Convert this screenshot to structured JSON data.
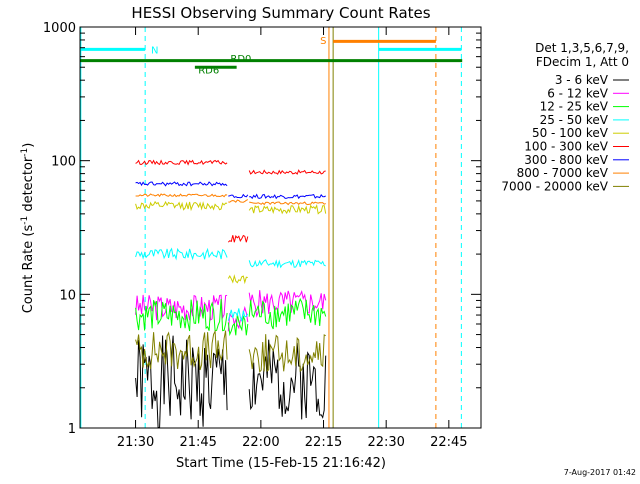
{
  "chart_data": {
    "type": "line",
    "title": "HESSI Observing Summary Count Rates",
    "xlabel": "Start Time (15-Feb-15 21:16:42)",
    "ylabel_main": "Count Rate (s",
    "ylabel_sup1": "-1",
    "ylabel_mid": " detector",
    "ylabel_sup2": "-1",
    "ylabel_end": ")",
    "x_unit": "minutes after 21:16:42",
    "xlim": [
      0,
      96
    ],
    "ylim": [
      1,
      1000
    ],
    "yscale": "log",
    "x_ticks": [
      {
        "label": "21:30",
        "x": 13.3
      },
      {
        "label": "21:45",
        "x": 28.3
      },
      {
        "label": "22:00",
        "x": 43.3
      },
      {
        "label": "22:15",
        "x": 58.3
      },
      {
        "label": "22:30",
        "x": 73.3
      },
      {
        "label": "22:45",
        "x": 88.3
      }
    ],
    "y_ticks": [
      {
        "label": "1",
        "y": 1
      },
      {
        "label": "10",
        "y": 10
      },
      {
        "label": "100",
        "y": 100
      },
      {
        "label": "1000",
        "y": 1000
      }
    ],
    "legend_header": [
      "Det 1,3,5,6,7,9,",
      "FDecim 1, Att 0"
    ],
    "legend_position": "right",
    "series": [
      {
        "name": "3 - 6 keV",
        "color": "#000000",
        "segments": [
          {
            "x0": 13.3,
            "x1": 35.5,
            "y": 2.2,
            "noise": 0.35,
            "seed": 1
          },
          {
            "x0": 40.5,
            "x1": 59.0,
            "y": 2.3,
            "noise": 0.3,
            "seed": 2
          }
        ]
      },
      {
        "name": "6 - 12 keV",
        "color": "#ff00ff",
        "segments": [
          {
            "x0": 13.3,
            "x1": 35.5,
            "y": 8.0,
            "noise": 0.1,
            "seed": 3
          },
          {
            "x0": 35.5,
            "x1": 40.5,
            "y": 6.5,
            "noise": 0.1,
            "seed": 4
          },
          {
            "x0": 40.5,
            "x1": 59.0,
            "y": 8.6,
            "noise": 0.1,
            "seed": 5
          }
        ]
      },
      {
        "name": "12 - 25 keV",
        "color": "#00ff00",
        "segments": [
          {
            "x0": 13.3,
            "x1": 35.5,
            "y": 7.0,
            "noise": 0.12,
            "seed": 6
          },
          {
            "x0": 35.5,
            "x1": 40.5,
            "y": 6.0,
            "noise": 0.1,
            "seed": 7
          },
          {
            "x0": 40.5,
            "x1": 59.0,
            "y": 7.2,
            "noise": 0.12,
            "seed": 8
          }
        ]
      },
      {
        "name": "25 - 50 keV",
        "color": "#00ffff",
        "segments": [
          {
            "x0": 13.3,
            "x1": 35.5,
            "y": 20.0,
            "noise": 0.04,
            "seed": 9
          },
          {
            "x0": 35.5,
            "x1": 40.5,
            "y": 7.0,
            "noise": 0.05,
            "seed": 10
          },
          {
            "x0": 40.5,
            "x1": 59.0,
            "y": 17.0,
            "noise": 0.03,
            "seed": 11
          }
        ]
      },
      {
        "name": "50 - 100 keV",
        "color": "#cccc00",
        "segments": [
          {
            "x0": 13.3,
            "x1": 35.5,
            "y": 46.0,
            "noise": 0.03,
            "seed": 12
          },
          {
            "x0": 35.5,
            "x1": 40.5,
            "y": 13.0,
            "noise": 0.03,
            "seed": 13
          },
          {
            "x0": 40.5,
            "x1": 59.0,
            "y": 43.0,
            "noise": 0.03,
            "seed": 14
          }
        ]
      },
      {
        "name": "100 - 300 keV",
        "color": "#ff0000",
        "segments": [
          {
            "x0": 13.3,
            "x1": 35.5,
            "y": 97.0,
            "noise": 0.015,
            "seed": 15
          },
          {
            "x0": 35.5,
            "x1": 40.5,
            "y": 26.0,
            "noise": 0.03,
            "seed": 16
          },
          {
            "x0": 40.5,
            "x1": 59.0,
            "y": 82.0,
            "noise": 0.015,
            "seed": 17
          }
        ]
      },
      {
        "name": "300 - 800 keV",
        "color": "#0000ff",
        "segments": [
          {
            "x0": 13.3,
            "x1": 35.5,
            "y": 67.0,
            "noise": 0.015,
            "seed": 18
          },
          {
            "x0": 35.5,
            "x1": 40.5,
            "y": 54.0,
            "noise": 0.015,
            "seed": 19
          },
          {
            "x0": 40.5,
            "x1": 59.0,
            "y": 54.0,
            "noise": 0.015,
            "seed": 20
          }
        ]
      },
      {
        "name": "800 - 7000 keV",
        "color": "#ff8000",
        "segments": [
          {
            "x0": 13.3,
            "x1": 35.5,
            "y": 55.0,
            "noise": 0.01,
            "seed": 21
          },
          {
            "x0": 35.5,
            "x1": 40.5,
            "y": 50.0,
            "noise": 0.01,
            "seed": 22
          },
          {
            "x0": 40.5,
            "x1": 59.0,
            "y": 48.0,
            "noise": 0.01,
            "seed": 23
          }
        ]
      },
      {
        "name": "7000 - 20000 keV",
        "color": "#808000",
        "segments": [
          {
            "x0": 13.3,
            "x1": 35.5,
            "y": 3.8,
            "noise": 0.15,
            "seed": 24
          },
          {
            "x0": 40.5,
            "x1": 59.0,
            "y": 3.6,
            "noise": 0.15,
            "seed": 25
          }
        ]
      }
    ],
    "annotations": {
      "lines": [
        {
          "x": 0.2,
          "color": "#00ffff",
          "style": "solid"
        },
        {
          "x": 15.6,
          "color": "#00ffff",
          "style": "dashed"
        },
        {
          "x": 71.5,
          "color": "#00ffff",
          "style": "solid"
        },
        {
          "x": 91.3,
          "color": "#00ffff",
          "style": "dashed"
        },
        {
          "x": 59.6,
          "color": "#ff8000",
          "style": "solid"
        },
        {
          "x": 85.2,
          "color": "#ff8000",
          "style": "dashed"
        },
        {
          "x": 60.6,
          "color": "#808000",
          "style": "solid"
        }
      ],
      "bars": [
        {
          "x0": 0.2,
          "x1": 15.6,
          "y": 680,
          "color": "#00ffff"
        },
        {
          "x0": 71.5,
          "x1": 91.3,
          "y": 680,
          "color": "#00ffff"
        },
        {
          "x0": 60.6,
          "x1": 85.2,
          "y": 780,
          "color": "#ff8000"
        },
        {
          "x0": 0,
          "x1": 91.5,
          "y": 560,
          "color": "#008000"
        },
        {
          "x0": 27.5,
          "x1": 37.5,
          "y": 500,
          "color": "#008000"
        }
      ],
      "labels": [
        {
          "text": "N",
          "x": 17.0,
          "y": 680,
          "color": "#00ffff"
        },
        {
          "text": "S",
          "x": 57.5,
          "y": 800,
          "color": "#ff8000"
        },
        {
          "text": "RD0",
          "x": 36.0,
          "y": 585,
          "color": "#008000"
        },
        {
          "text": "RD6",
          "x": 28.3,
          "y": 480,
          "color": "#008000"
        }
      ]
    }
  },
  "footer": {
    "date_stamp": "7-Aug-2017 01:42"
  }
}
